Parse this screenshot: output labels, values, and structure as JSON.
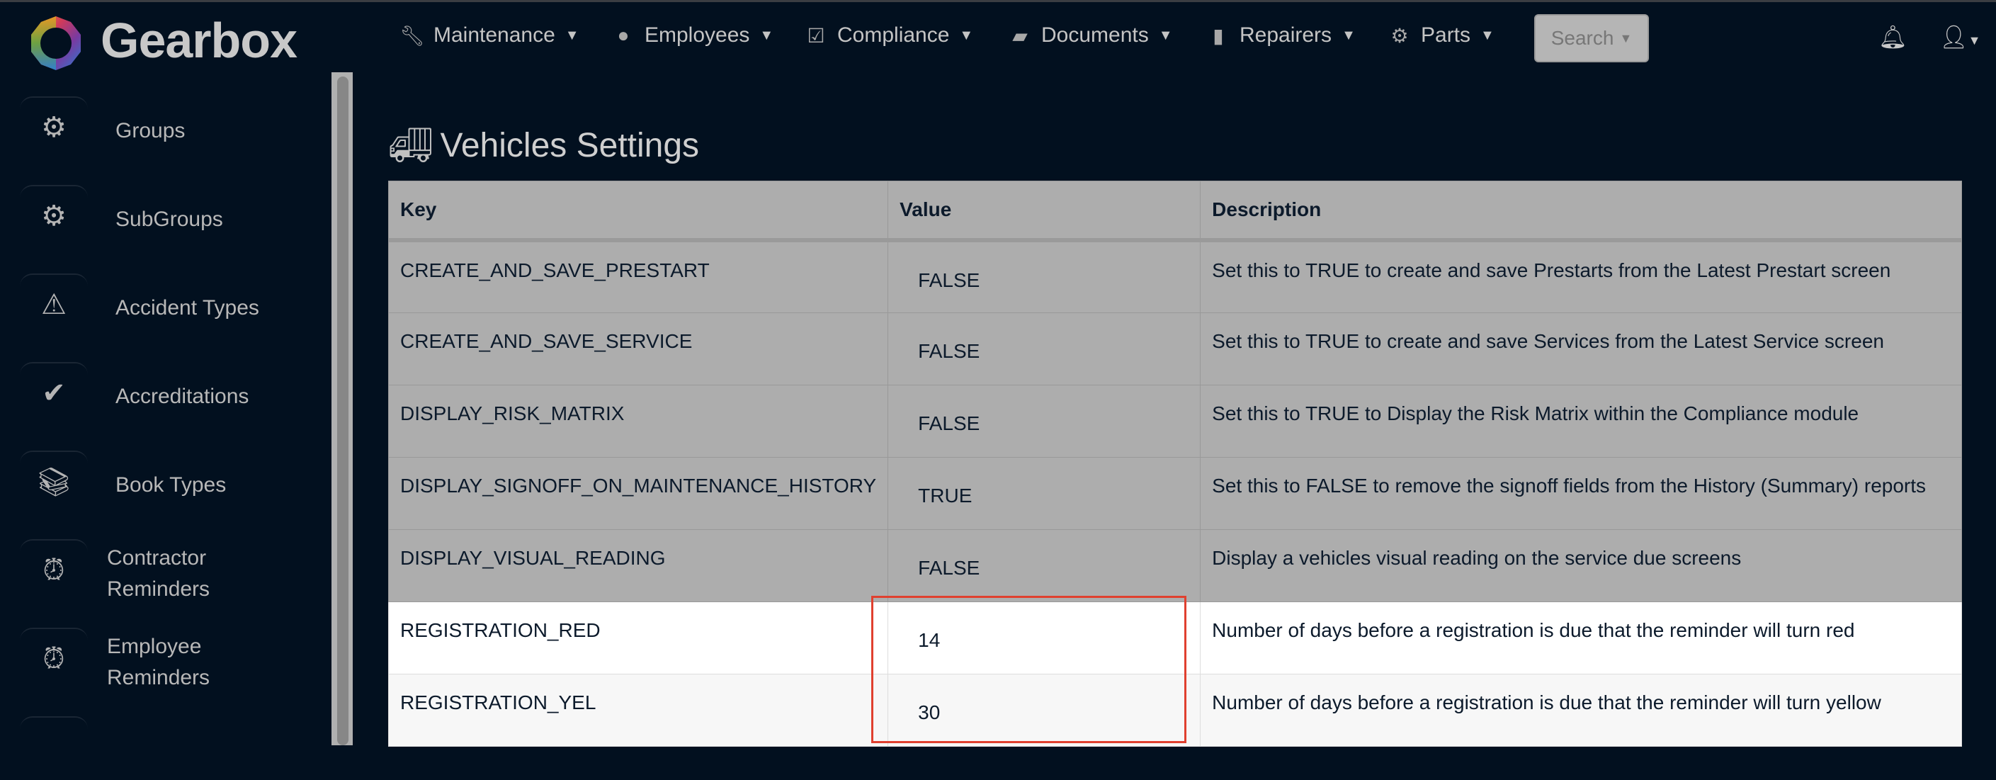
{
  "brand": {
    "name": "Gearbox"
  },
  "nav": {
    "items": [
      {
        "label": "Maintenance",
        "icon": "wrench-icon"
      },
      {
        "label": "Employees",
        "icon": "user-circle-icon"
      },
      {
        "label": "Compliance",
        "icon": "calendar-check-icon"
      },
      {
        "label": "Documents",
        "icon": "folder-open-icon"
      },
      {
        "label": "Repairers",
        "icon": "address-book-icon"
      },
      {
        "label": "Parts",
        "icon": "gear-icon"
      }
    ],
    "search_label": "Search"
  },
  "sidebar": {
    "items": [
      {
        "label": "Groups",
        "icon": "gears-icon"
      },
      {
        "label": "SubGroups",
        "icon": "gears-icon"
      },
      {
        "label": "Accident Types",
        "icon": "warning-icon"
      },
      {
        "label": "Accreditations",
        "icon": "check-double-icon"
      },
      {
        "label": "Book Types",
        "icon": "books-icon"
      },
      {
        "label": "Contractor Reminders",
        "icon": "alarm-clock-icon"
      },
      {
        "label": "Employee Reminders",
        "icon": "alarm-clock-icon"
      }
    ]
  },
  "page": {
    "title": "Vehicles Settings"
  },
  "table": {
    "headers": [
      "Key",
      "Value",
      "Description"
    ],
    "rows": [
      {
        "key": "CREATE_AND_SAVE_PRESTART",
        "value": "FALSE",
        "description": "Set this to TRUE to create and save Prestarts from the Latest Prestart screen"
      },
      {
        "key": "CREATE_AND_SAVE_SERVICE",
        "value": "FALSE",
        "description": "Set this to TRUE to create and save Services from the Latest Service screen"
      },
      {
        "key": "DISPLAY_RISK_MATRIX",
        "value": "FALSE",
        "description": "Set this to TRUE to Display the Risk Matrix within the Compliance module"
      },
      {
        "key": "DISPLAY_SIGNOFF_ON_MAINTENANCE_HISTORY",
        "value": "TRUE",
        "description": "Set this to FALSE to remove the signoff fields from the History (Summary) reports"
      },
      {
        "key": "DISPLAY_VISUAL_READING",
        "value": "FALSE",
        "description": "Display a vehicles visual reading on the service due screens"
      },
      {
        "key": "REGISTRATION_RED",
        "value": "14",
        "description": "Number of days before a registration is due that the reminder will turn red"
      },
      {
        "key": "REGISTRATION_YEL",
        "value": "30",
        "description": "Number of days before a registration is due that the reminder will turn yellow"
      }
    ]
  },
  "colors": {
    "background": "#02101f",
    "highlight_border": "#e0402f",
    "table_gray": "#adadad"
  }
}
